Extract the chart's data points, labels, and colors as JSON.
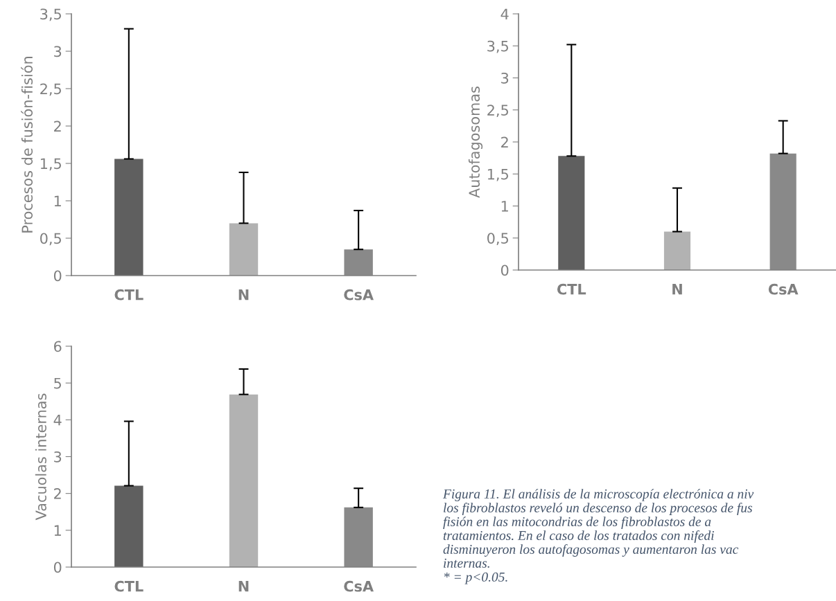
{
  "chart_data": [
    {
      "type": "bar",
      "ylabel": "Procesos de fusión-fisión",
      "categories": [
        "CTL",
        "N",
        "CsA"
      ],
      "values": [
        1.56,
        0.7,
        0.35
      ],
      "colors": [
        "#5f5f5f",
        "#b2b2b2",
        "#898989"
      ],
      "errors": [
        [
          1.56,
          3.3
        ],
        [
          0.7,
          1.38
        ],
        [
          0.35,
          0.87
        ]
      ],
      "ylim": [
        0,
        3.5
      ],
      "yticks": [
        {
          "value": 0,
          "label": "0"
        },
        {
          "value": 0.5,
          "label": "0,5"
        },
        {
          "value": 1,
          "label": "1"
        },
        {
          "value": 1.5,
          "label": "1,5"
        },
        {
          "value": 2,
          "label": "2"
        },
        {
          "value": 2.5,
          "label": "2,5"
        },
        {
          "value": 3,
          "label": "3"
        },
        {
          "value": 3.5,
          "label": "3,5"
        }
      ],
      "grid": false,
      "legend": false
    },
    {
      "type": "bar",
      "ylabel": "Autofagosomas",
      "categories": [
        "CTL",
        "N",
        "CsA"
      ],
      "values": [
        1.78,
        0.6,
        1.82
      ],
      "colors": [
        "#5f5f5f",
        "#b2b2b2",
        "#898989"
      ],
      "errors": [
        [
          1.78,
          3.52
        ],
        [
          0.6,
          1.28
        ],
        [
          1.82,
          2.33
        ]
      ],
      "ylim": [
        0,
        4
      ],
      "yticks": [
        {
          "value": 0,
          "label": "0"
        },
        {
          "value": 0.5,
          "label": "0,5"
        },
        {
          "value": 1,
          "label": "1"
        },
        {
          "value": 1.5,
          "label": "1,5"
        },
        {
          "value": 2,
          "label": "2"
        },
        {
          "value": 2.5,
          "label": "2,5"
        },
        {
          "value": 3,
          "label": "3"
        },
        {
          "value": 3.5,
          "label": "3,5"
        },
        {
          "value": 4,
          "label": "4"
        }
      ],
      "grid": false,
      "legend": false
    },
    {
      "type": "bar",
      "ylabel": "Vacuolas internas",
      "categories": [
        "CTL",
        "N",
        "CsA"
      ],
      "values": [
        2.21,
        4.69,
        1.62
      ],
      "colors": [
        "#5f5f5f",
        "#b2b2b2",
        "#898989"
      ],
      "errors": [
        [
          2.21,
          3.96
        ],
        [
          4.69,
          5.38
        ],
        [
          1.62,
          2.14
        ]
      ],
      "ylim": [
        0,
        6
      ],
      "yticks": [
        0,
        1,
        2,
        3,
        4,
        5,
        6
      ],
      "grid": false,
      "legend": false,
      "annotations": [
        "Figura 11. El análisis de la microscopía electrónica a niv",
        "los fibroblastos reveló un descenso de los procesos de fus",
        "fisión en las mitocondrias de los fibroblastos de a",
        "tratamientos. En el caso de los tratados con nifedi",
        "disminuyeron los autofagosomas y aumentaron las vac",
        "internas.",
        "* = p<0.05."
      ]
    }
  ]
}
